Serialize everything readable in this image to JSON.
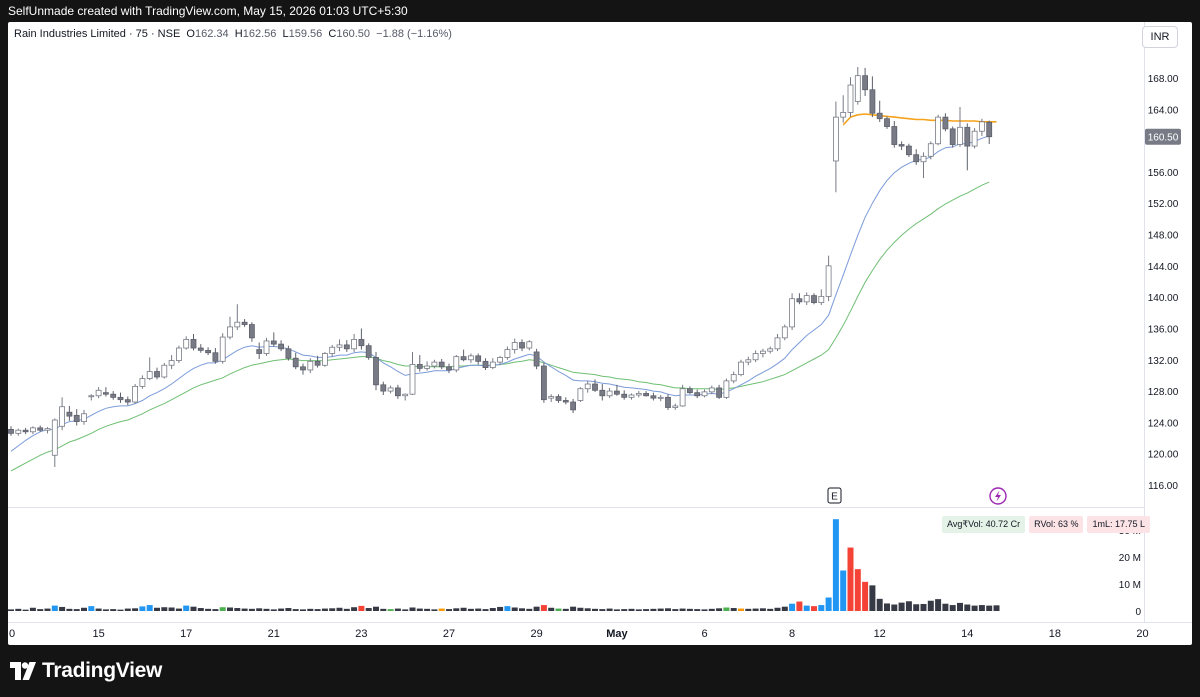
{
  "header": {
    "attribution": "SelfUnmade created with TradingView.com, May 15, 2026 01:03 UTC+5:30"
  },
  "legend": {
    "symbol": "Rain Industries Limited · 75 · NSE",
    "open_label": "O",
    "open": "162.34",
    "high_label": "H",
    "high": "162.56",
    "low_label": "L",
    "low": "159.56",
    "close_label": "C",
    "close": "160.50",
    "change": "−1.88 (−1.16%)"
  },
  "currency": "INR",
  "price_axis": {
    "ticks": [
      "168.00",
      "164.00",
      "160.50",
      "156.00",
      "152.00",
      "148.00",
      "144.00",
      "140.00",
      "136.00",
      "132.00",
      "128.00",
      "124.00",
      "120.00",
      "116.00"
    ]
  },
  "volume_axis": {
    "ticks": [
      "30 M",
      "20 M",
      "10 M",
      "0"
    ]
  },
  "volume_badges": {
    "avg": "Avg₹Vol: 40.72 Cr",
    "rvol": "RVol: 63 %",
    "ml": "1mL: 17.75 L"
  },
  "markers": {
    "earnings": "E",
    "dividend_icon": "lightning-icon"
  },
  "footer": {
    "brand": "TradingView",
    "logo_icon": "tradingview-logo-icon"
  },
  "colors": {
    "up_candle": "#ffffff",
    "down_candle": "#787b86",
    "ema_fast": "#7b9bd9",
    "ema_slow": "#6fbf73",
    "vwap": "#f5a21c",
    "vol_blue": "#2196f3",
    "vol_red": "#f44336",
    "vol_dark": "#363a45",
    "vol_green": "#4caf50",
    "vol_orange": "#ff9800"
  },
  "chart_data": {
    "type": "candlestick",
    "title": "Rain Industries Limited · 75 · NSE",
    "x_tick_labels": [
      "0",
      "15",
      "17",
      "21",
      "23",
      "27",
      "29",
      "May",
      "6",
      "8",
      "12",
      "14",
      "18",
      "20"
    ],
    "ylim": [
      114,
      171
    ],
    "volume_ylim": [
      0,
      36
    ],
    "candles": [
      [
        123.1,
        123.5,
        122.3,
        122.6
      ],
      [
        122.6,
        123.2,
        122.3,
        123.0
      ],
      [
        123.0,
        123.3,
        122.5,
        122.8
      ],
      [
        122.8,
        123.5,
        122.5,
        123.3
      ],
      [
        123.3,
        123.6,
        122.8,
        123.0
      ],
      [
        123.0,
        123.4,
        122.6,
        123.2
      ],
      [
        119.8,
        124.5,
        118.3,
        124.3
      ],
      [
        123.5,
        127.2,
        123.0,
        126.0
      ],
      [
        125.3,
        126.1,
        124.2,
        124.8
      ],
      [
        124.9,
        125.7,
        123.6,
        124.1
      ],
      [
        124.1,
        125.6,
        123.7,
        125.1
      ],
      [
        127.3,
        127.6,
        126.8,
        127.4
      ],
      [
        127.4,
        128.5,
        127.1,
        128.1
      ],
      [
        127.8,
        128.5,
        127.3,
        127.6
      ],
      [
        127.6,
        128.0,
        126.9,
        127.2
      ],
      [
        127.2,
        127.8,
        126.5,
        126.9
      ],
      [
        126.9,
        127.3,
        126.2,
        126.6
      ],
      [
        126.6,
        128.9,
        126.4,
        128.6
      ],
      [
        128.6,
        130.0,
        128.3,
        129.6
      ],
      [
        129.6,
        132.3,
        129.4,
        130.5
      ],
      [
        130.5,
        131.0,
        129.5,
        129.8
      ],
      [
        129.8,
        131.6,
        129.6,
        131.3
      ],
      [
        131.3,
        132.6,
        130.8,
        131.9
      ],
      [
        131.9,
        133.8,
        131.6,
        133.5
      ],
      [
        133.5,
        135.0,
        133.3,
        134.6
      ],
      [
        134.6,
        135.3,
        133.2,
        133.5
      ],
      [
        133.5,
        134.0,
        132.9,
        133.2
      ],
      [
        133.2,
        133.6,
        132.6,
        132.9
      ],
      [
        132.9,
        133.5,
        131.5,
        131.8
      ],
      [
        131.8,
        135.4,
        131.5,
        134.9
      ],
      [
        134.9,
        137.5,
        134.6,
        136.2
      ],
      [
        136.2,
        139.1,
        135.8,
        136.8
      ],
      [
        136.8,
        137.2,
        136.2,
        136.5
      ],
      [
        136.5,
        136.8,
        134.3,
        134.8
      ],
      [
        133.3,
        134.2,
        132.1,
        132.8
      ],
      [
        132.8,
        134.8,
        132.5,
        134.4
      ],
      [
        134.4,
        135.5,
        133.7,
        134.0
      ],
      [
        134.0,
        134.5,
        133.1,
        133.4
      ],
      [
        133.4,
        133.8,
        131.9,
        132.2
      ],
      [
        132.2,
        132.9,
        130.8,
        131.1
      ],
      [
        131.1,
        131.5,
        130.1,
        130.7
      ],
      [
        130.7,
        132.2,
        130.3,
        131.8
      ],
      [
        131.8,
        132.5,
        131.0,
        131.3
      ],
      [
        131.3,
        133.0,
        131.1,
        132.8
      ],
      [
        132.8,
        133.9,
        132.4,
        133.6
      ],
      [
        133.6,
        134.6,
        133.1,
        133.9
      ],
      [
        133.9,
        134.5,
        133.0,
        133.4
      ],
      [
        133.4,
        135.3,
        133.0,
        134.6
      ],
      [
        134.6,
        136.0,
        133.3,
        133.8
      ],
      [
        133.8,
        134.1,
        132.0,
        132.3
      ],
      [
        132.3,
        133.0,
        128.1,
        128.8
      ],
      [
        128.8,
        129.2,
        127.5,
        128.0
      ],
      [
        128.0,
        128.7,
        127.7,
        128.4
      ],
      [
        128.4,
        128.8,
        127.0,
        127.4
      ],
      [
        127.4,
        127.7,
        126.8,
        127.6
      ],
      [
        127.6,
        133.0,
        127.5,
        131.4
      ],
      [
        131.4,
        132.6,
        130.5,
        130.9
      ],
      [
        130.9,
        131.8,
        130.6,
        131.2
      ],
      [
        131.2,
        132.0,
        130.9,
        131.7
      ],
      [
        131.7,
        132.1,
        130.8,
        131.1
      ],
      [
        131.1,
        131.5,
        130.3,
        130.7
      ],
      [
        130.7,
        132.6,
        130.4,
        132.4
      ],
      [
        132.4,
        133.3,
        131.8,
        132.0
      ],
      [
        132.0,
        132.8,
        131.6,
        132.5
      ],
      [
        132.5,
        132.8,
        131.4,
        131.8
      ],
      [
        131.8,
        132.2,
        130.7,
        131.0
      ],
      [
        131.0,
        132.2,
        130.8,
        131.7
      ],
      [
        131.7,
        132.5,
        131.3,
        132.3
      ],
      [
        132.3,
        133.7,
        132.0,
        133.3
      ],
      [
        133.3,
        134.7,
        132.8,
        134.2
      ],
      [
        134.2,
        134.6,
        133.1,
        133.5
      ],
      [
        133.5,
        134.5,
        133.2,
        134.3
      ],
      [
        133.0,
        133.4,
        130.8,
        131.2
      ],
      [
        131.2,
        131.6,
        126.5,
        126.9
      ],
      [
        127.1,
        127.6,
        126.6,
        127.3
      ],
      [
        127.3,
        127.6,
        126.5,
        126.8
      ],
      [
        126.8,
        127.2,
        126.3,
        126.6
      ],
      [
        126.6,
        127.0,
        125.2,
        125.6
      ],
      [
        126.8,
        128.5,
        126.6,
        128.3
      ],
      [
        128.3,
        129.3,
        127.8,
        128.9
      ],
      [
        128.9,
        129.5,
        127.9,
        128.1
      ],
      [
        128.1,
        128.9,
        126.8,
        127.4
      ],
      [
        127.4,
        128.4,
        127.1,
        128.0
      ],
      [
        128.0,
        128.8,
        127.4,
        127.6
      ],
      [
        127.6,
        128.1,
        126.9,
        127.2
      ],
      [
        127.2,
        127.7,
        126.9,
        127.5
      ],
      [
        127.5,
        128.0,
        127.2,
        127.7
      ],
      [
        127.7,
        128.0,
        127.3,
        127.4
      ],
      [
        127.4,
        127.8,
        126.8,
        127.1
      ],
      [
        127.1,
        127.5,
        126.7,
        127.2
      ],
      [
        127.2,
        127.6,
        125.6,
        125.9
      ],
      [
        125.9,
        126.4,
        125.6,
        126.1
      ],
      [
        126.1,
        128.8,
        126.0,
        128.3
      ],
      [
        128.3,
        128.6,
        127.6,
        127.8
      ],
      [
        127.8,
        128.2,
        127.1,
        127.4
      ],
      [
        127.4,
        128.2,
        127.2,
        127.9
      ],
      [
        127.9,
        128.7,
        127.6,
        128.4
      ],
      [
        128.4,
        128.8,
        127.0,
        127.2
      ],
      [
        127.2,
        129.6,
        127.0,
        129.3
      ],
      [
        129.3,
        130.5,
        129.0,
        130.1
      ],
      [
        130.1,
        132.0,
        129.9,
        131.7
      ],
      [
        131.7,
        132.4,
        131.3,
        132.0
      ],
      [
        132.0,
        133.2,
        131.7,
        132.8
      ],
      [
        132.8,
        133.4,
        132.3,
        133.1
      ],
      [
        133.1,
        133.7,
        132.8,
        133.4
      ],
      [
        133.4,
        135.3,
        133.1,
        134.8
      ],
      [
        134.8,
        136.5,
        134.5,
        136.2
      ],
      [
        136.2,
        140.5,
        135.8,
        139.8
      ],
      [
        139.8,
        140.5,
        139.1,
        139.4
      ],
      [
        139.4,
        140.6,
        139.0,
        140.2
      ],
      [
        140.2,
        140.5,
        139.1,
        139.3
      ],
      [
        139.3,
        141.0,
        139.0,
        140.1
      ],
      [
        140.1,
        145.3,
        139.5,
        144.0
      ],
      [
        157.4,
        165.0,
        153.4,
        163.0
      ],
      [
        163.0,
        165.8,
        162.3,
        163.6
      ],
      [
        163.6,
        168.1,
        163.0,
        167.1
      ],
      [
        165.0,
        169.4,
        164.6,
        168.3
      ],
      [
        168.3,
        169.3,
        165.7,
        166.5
      ],
      [
        166.5,
        168.2,
        163.0,
        163.5
      ],
      [
        163.5,
        165.1,
        162.4,
        162.8
      ],
      [
        162.8,
        163.1,
        161.5,
        161.8
      ],
      [
        161.8,
        162.5,
        159.1,
        159.5
      ],
      [
        159.5,
        159.9,
        158.8,
        159.3
      ],
      [
        159.3,
        159.6,
        157.9,
        158.2
      ],
      [
        158.2,
        158.9,
        156.9,
        157.3
      ],
      [
        157.3,
        158.5,
        155.2,
        158.0
      ],
      [
        158.0,
        159.9,
        157.6,
        159.6
      ],
      [
        159.6,
        163.3,
        159.4,
        163.0
      ],
      [
        163.0,
        163.5,
        161.2,
        161.5
      ],
      [
        161.5,
        161.8,
        159.1,
        159.5
      ],
      [
        159.5,
        164.3,
        159.2,
        161.7
      ],
      [
        161.7,
        162.2,
        156.2,
        159.3
      ],
      [
        159.3,
        161.6,
        159.0,
        161.2
      ],
      [
        161.2,
        162.8,
        160.6,
        162.4
      ],
      [
        162.34,
        162.56,
        159.56,
        160.5
      ]
    ],
    "series": [
      {
        "name": "EMA fast",
        "values": [
          120.3,
          121.0,
          121.7,
          122.3,
          122.8,
          123.1,
          123.1,
          123.7,
          124.1,
          124.2,
          124.4,
          124.9,
          125.4,
          125.8,
          126.0,
          126.1,
          126.1,
          126.4,
          126.8,
          127.4,
          127.8,
          128.3,
          128.9,
          129.6,
          130.3,
          130.9,
          131.3,
          131.6,
          131.6,
          132.0,
          132.6,
          133.2,
          133.6,
          133.8,
          133.6,
          133.7,
          133.7,
          133.6,
          133.4,
          133.0,
          132.6,
          132.5,
          132.3,
          132.3,
          132.4,
          132.6,
          132.6,
          132.9,
          133.0,
          132.9,
          132.3,
          131.6,
          131.1,
          130.5,
          130.0,
          130.2,
          130.3,
          130.4,
          130.6,
          130.6,
          130.6,
          130.9,
          131.1,
          131.3,
          131.3,
          131.2,
          131.3,
          131.4,
          131.7,
          132.1,
          132.4,
          132.7,
          132.5,
          131.7,
          131.1,
          130.5,
          130.0,
          129.4,
          129.3,
          129.3,
          129.2,
          129.0,
          128.9,
          128.7,
          128.5,
          128.4,
          128.3,
          128.2,
          128.0,
          127.9,
          127.6,
          127.4,
          127.5,
          127.5,
          127.5,
          127.6,
          127.7,
          127.6,
          127.9,
          128.3,
          128.8,
          129.3,
          129.9,
          130.4,
          130.9,
          131.5,
          132.2,
          133.3,
          134.2,
          135.1,
          135.8,
          136.5,
          137.7,
          140.3,
          142.8,
          145.4,
          147.9,
          150.2,
          152.0,
          153.6,
          154.9,
          155.9,
          156.6,
          157.1,
          157.5,
          157.6,
          157.9,
          158.6,
          159.1,
          159.2,
          159.6,
          159.6,
          159.9,
          160.3,
          160.6
        ]
      },
      {
        "name": "EMA slow",
        "values": [
          117.8,
          118.3,
          118.8,
          119.3,
          119.8,
          120.2,
          120.5,
          121.0,
          121.5,
          121.8,
          122.2,
          122.6,
          123.1,
          123.5,
          123.8,
          124.1,
          124.3,
          124.7,
          125.1,
          125.6,
          126.0,
          126.4,
          126.9,
          127.4,
          127.9,
          128.4,
          128.8,
          129.1,
          129.4,
          129.7,
          130.2,
          130.6,
          131.0,
          131.3,
          131.5,
          131.7,
          131.9,
          132.0,
          132.1,
          132.0,
          131.9,
          131.9,
          131.9,
          131.9,
          132.0,
          132.1,
          132.2,
          132.3,
          132.4,
          132.4,
          132.2,
          131.9,
          131.7,
          131.4,
          131.2,
          131.2,
          131.1,
          131.1,
          131.1,
          131.1,
          131.1,
          131.2,
          131.2,
          131.3,
          131.3,
          131.3,
          131.3,
          131.4,
          131.5,
          131.7,
          131.8,
          132.0,
          131.9,
          131.6,
          131.3,
          131.0,
          130.7,
          130.4,
          130.3,
          130.2,
          130.1,
          129.9,
          129.8,
          129.6,
          129.5,
          129.4,
          129.2,
          129.1,
          128.9,
          128.8,
          128.6,
          128.4,
          128.4,
          128.3,
          128.3,
          128.3,
          128.3,
          128.2,
          128.3,
          128.4,
          128.6,
          128.8,
          129.0,
          129.2,
          129.5,
          129.8,
          130.1,
          130.6,
          131.1,
          131.6,
          132.1,
          132.6,
          133.3,
          134.8,
          136.4,
          138.2,
          140.1,
          141.9,
          143.4,
          144.8,
          146.0,
          147.0,
          147.9,
          148.7,
          149.4,
          150.0,
          150.6,
          151.3,
          151.9,
          152.4,
          152.9,
          153.3,
          153.8,
          154.3,
          154.7
        ]
      },
      {
        "name": "VWAP",
        "values": [
          162.0,
          163.0,
          163.3,
          163.4,
          163.3,
          163.2,
          163.1,
          163.0,
          162.9,
          162.8,
          162.7,
          162.7,
          162.6,
          162.6,
          162.6,
          162.5,
          162.5,
          162.5,
          162.5,
          162.4,
          162.4,
          162.4
        ]
      },
      {
        "name": "Volume (M)",
        "values": [
          0.6,
          0.8,
          0.5,
          1.2,
          0.7,
          0.9,
          2.0,
          1.5,
          0.8,
          0.7,
          1.2,
          1.8,
          0.9,
          0.6,
          0.7,
          0.5,
          0.9,
          1.0,
          1.7,
          2.2,
          1.2,
          1.4,
          1.3,
          0.9,
          2.0,
          1.6,
          1.1,
          0.8,
          0.7,
          1.4,
          1.3,
          1.1,
          0.9,
          0.8,
          1.0,
          0.8,
          0.6,
          0.9,
          1.1,
          0.7,
          0.6,
          0.8,
          0.7,
          0.9,
          1.0,
          1.2,
          0.8,
          1.4,
          1.9,
          1.1,
          1.6,
          0.8,
          0.7,
          0.9,
          0.6,
          1.3,
          0.9,
          0.8,
          0.6,
          0.9,
          0.7,
          1.0,
          1.2,
          0.8,
          0.9,
          0.7,
          1.1,
          1.5,
          1.8,
          1.3,
          1.0,
          0.8,
          1.6,
          2.2,
          1.2,
          0.9,
          0.8,
          1.6,
          1.2,
          1.0,
          0.8,
          0.7,
          0.9,
          0.6,
          0.7,
          0.8,
          0.6,
          0.7,
          0.8,
          0.9,
          1.0,
          0.7,
          0.9,
          0.8,
          0.7,
          0.6,
          0.8,
          1.0,
          1.3,
          1.1,
          0.9,
          0.8,
          0.9,
          1.0,
          0.8,
          1.2,
          1.6,
          2.7,
          3.5,
          2.0,
          1.8,
          2.2,
          5.0,
          34.0,
          15.0,
          23.5,
          15.5,
          10.8,
          9.5,
          4.5,
          2.8,
          2.4,
          3.1,
          3.6,
          2.5,
          2.6,
          3.8,
          4.4,
          2.7,
          2.2,
          3.0,
          2.4,
          2.0,
          2.2,
          2.0,
          2.1
        ]
      }
    ]
  }
}
